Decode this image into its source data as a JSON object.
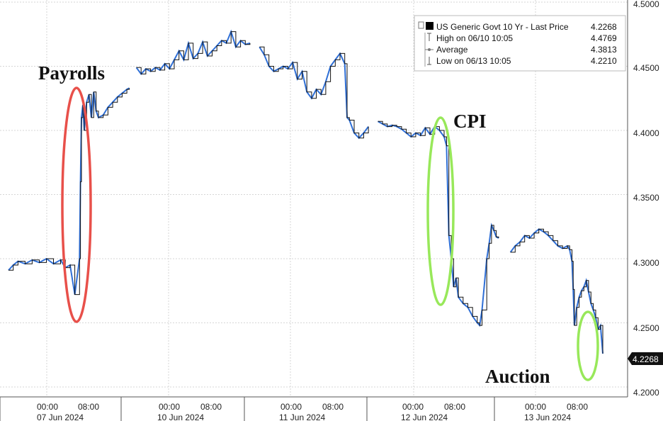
{
  "chart_data": {
    "type": "line",
    "legend": {
      "placement": "top-right",
      "series_name": "US Generic Govt 10 Yr - Last Price",
      "last_value": "4.2268",
      "rows": [
        {
          "label": "High on 06/10 10:05",
          "value": "4.4769"
        },
        {
          "label": "Average",
          "value": "4.3813"
        },
        {
          "label": "Low on 06/13 10:05",
          "value": "4.2210"
        }
      ]
    },
    "last_price_tag": "4.2268",
    "y_axis": {
      "position": "right",
      "range": [
        4.195,
        4.5
      ],
      "ticks": [
        "4.2000",
        "4.2500",
        "4.3000",
        "4.3500",
        "4.4000",
        "4.4500",
        "4.5000"
      ],
      "grid": true
    },
    "x_axis": {
      "time_labels": [
        "00:00",
        "08:00",
        "00:00",
        "08:00",
        "00:00",
        "08:00",
        "00:00",
        "08:00",
        "00:00",
        "08:00"
      ],
      "date_labels": [
        "07 Jun 2024",
        "10 Jun 2024",
        "11 Jun 2024",
        "12 Jun 2024",
        "13 Jun 2024"
      ],
      "grid": true
    },
    "series": [
      {
        "name": "US Generic Govt 10 Yr - Last Price",
        "segments": [
          [
            [
              0,
              4.291
            ],
            [
              2,
              4.295
            ],
            [
              4,
              4.298
            ],
            [
              7,
              4.296
            ],
            [
              10,
              4.299
            ],
            [
              13,
              4.297
            ],
            [
              16,
              4.3
            ],
            [
              19,
              4.296
            ],
            [
              22,
              4.299
            ],
            [
              24,
              4.293
            ],
            [
              26,
              4.295
            ],
            [
              28,
              4.272
            ],
            [
              30,
              4.3
            ],
            [
              30.4,
              4.36
            ],
            [
              30.8,
              4.41
            ],
            [
              31.4,
              4.42
            ],
            [
              32,
              4.4
            ],
            [
              33,
              4.422
            ],
            [
              34,
              4.428
            ],
            [
              35,
              4.41
            ],
            [
              36,
              4.43
            ],
            [
              37,
              4.415
            ],
            [
              38,
              4.41
            ],
            [
              40,
              4.412
            ],
            [
              42,
              4.418
            ],
            [
              44,
              4.422
            ],
            [
              46,
              4.426
            ],
            [
              48,
              4.429
            ],
            [
              50,
              4.432
            ],
            [
              51,
              4.433
            ]
          ],
          [
            [
              54,
              4.449
            ],
            [
              56,
              4.444
            ],
            [
              58,
              4.448
            ],
            [
              60,
              4.446
            ],
            [
              62,
              4.449
            ],
            [
              64,
              4.447
            ],
            [
              66,
              4.452
            ],
            [
              68,
              4.448
            ],
            [
              70,
              4.455
            ],
            [
              72,
              4.462
            ],
            [
              74,
              4.455
            ],
            [
              76,
              4.468
            ],
            [
              78,
              4.456
            ],
            [
              80,
              4.46
            ],
            [
              82,
              4.469
            ],
            [
              84,
              4.458
            ],
            [
              86,
              4.462
            ],
            [
              88,
              4.466
            ],
            [
              90,
              4.47
            ],
            [
              92,
              4.468
            ],
            [
              94,
              4.477
            ],
            [
              96,
              4.465
            ],
            [
              98,
              4.47
            ],
            [
              100,
              4.467
            ],
            [
              102,
              4.468
            ]
          ],
          [
            [
              106,
              4.465
            ],
            [
              108,
              4.459
            ],
            [
              110,
              4.45
            ],
            [
              112,
              4.446
            ],
            [
              114,
              4.448
            ],
            [
              116,
              4.45
            ],
            [
              118,
              4.448
            ],
            [
              120,
              4.453
            ],
            [
              122,
              4.44
            ],
            [
              124,
              4.446
            ],
            [
              126,
              4.43
            ],
            [
              128,
              4.425
            ],
            [
              130,
              4.432
            ],
            [
              132,
              4.428
            ],
            [
              134,
              4.438
            ],
            [
              136,
              4.45
            ],
            [
              138,
              4.455
            ],
            [
              140,
              4.46
            ],
            [
              142,
              4.452
            ],
            [
              143,
              4.41
            ],
            [
              144,
              4.408
            ],
            [
              146,
              4.398
            ],
            [
              148,
              4.394
            ],
            [
              150,
              4.398
            ],
            [
              152,
              4.403
            ]
          ],
          [
            [
              156,
              4.407
            ],
            [
              158,
              4.405
            ],
            [
              160,
              4.403
            ],
            [
              162,
              4.404
            ],
            [
              164,
              4.403
            ],
            [
              166,
              4.401
            ],
            [
              168,
              4.398
            ],
            [
              170,
              4.395
            ],
            [
              172,
              4.398
            ],
            [
              174,
              4.396
            ],
            [
              176,
              4.402
            ],
            [
              178,
              4.397
            ],
            [
              180,
              4.403
            ],
            [
              182,
              4.4
            ],
            [
              184,
              4.395
            ],
            [
              185,
              4.388
            ],
            [
              186,
              4.318
            ],
            [
              187,
              4.3
            ],
            [
              188,
              4.278
            ],
            [
              189,
              4.285
            ],
            [
              190,
              4.27
            ],
            [
              192,
              4.265
            ],
            [
              194,
              4.262
            ],
            [
              196,
              4.255
            ],
            [
              198,
              4.25
            ],
            [
              199,
              4.248
            ],
            [
              200,
              4.26
            ],
            [
              202,
              4.3
            ],
            [
              203,
              4.312
            ],
            [
              204,
              4.326
            ],
            [
              205,
              4.322
            ],
            [
              206,
              4.317
            ],
            [
              207,
              4.316
            ]
          ],
          [
            [
              212,
              4.305
            ],
            [
              214,
              4.31
            ],
            [
              216,
              4.313
            ],
            [
              218,
              4.318
            ],
            [
              220,
              4.316
            ],
            [
              222,
              4.32
            ],
            [
              224,
              4.323
            ],
            [
              226,
              4.321
            ],
            [
              228,
              4.318
            ],
            [
              230,
              4.314
            ],
            [
              232,
              4.31
            ],
            [
              234,
              4.308
            ],
            [
              236,
              4.31
            ],
            [
              237,
              4.307
            ],
            [
              238,
              4.298
            ],
            [
              238.5,
              4.276
            ],
            [
              239,
              4.248
            ],
            [
              240,
              4.262
            ],
            [
              241,
              4.27
            ],
            [
              242,
              4.275
            ],
            [
              243,
              4.278
            ],
            [
              244,
              4.283
            ],
            [
              245,
              4.274
            ],
            [
              246,
              4.265
            ],
            [
              247,
              4.26
            ],
            [
              248,
              4.254
            ],
            [
              249,
              4.245
            ],
            [
              250,
              4.248
            ],
            [
              251,
              4.226
            ]
          ]
        ]
      }
    ],
    "annotations": [
      "Payrolls",
      "CPI",
      "Auction"
    ]
  }
}
